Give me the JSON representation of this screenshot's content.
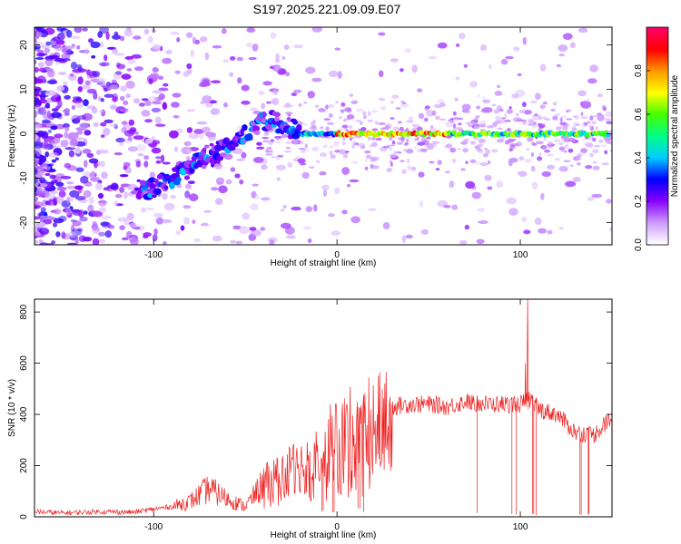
{
  "figure_title": "S197.2025.221.09.09.E07",
  "chart_data": [
    {
      "type": "heatmap",
      "title": "",
      "xlabel": "Height of straight line (km)",
      "ylabel": "Frequency (Hz)",
      "xlim": [
        -165,
        150
      ],
      "ylim": [
        -25,
        24
      ],
      "xticks": [
        -100,
        0,
        100
      ],
      "yticks": [
        -20,
        -10,
        0,
        10,
        20
      ],
      "colorbar": {
        "label": "Normalized spectral amplitude",
        "range": [
          0,
          1
        ],
        "ticks": [
          0.0,
          0.2,
          0.4,
          0.6,
          0.8
        ],
        "tick_labels": [
          "0.0",
          "0.2",
          "0.4",
          "0.6",
          "0.8"
        ],
        "colormap": [
          "#ffffff",
          "#cc99ff",
          "#8800ff",
          "#0000ff",
          "#00ccff",
          "#00ff88",
          "#44ff00",
          "#ffff00",
          "#ff9900",
          "#ff0000",
          "#ff0066"
        ]
      },
      "ridge": {
        "description_points_x": [
          -105,
          -90,
          -75,
          -60,
          -50,
          -40,
          -30,
          -20,
          0,
          50,
          100,
          150
        ],
        "description_points_y": [
          -13,
          -10,
          -6,
          -3,
          0,
          3,
          2,
          0,
          0,
          0,
          0,
          0
        ]
      }
    },
    {
      "type": "line",
      "title": "",
      "xlabel": "Height of straight line (km)",
      "ylabel": "SNR (10 * v/v)",
      "xlim": [
        -165,
        150
      ],
      "ylim": [
        0,
        850
      ],
      "xticks": [
        -100,
        0,
        100
      ],
      "yticks": [
        0,
        200,
        400,
        600,
        800
      ],
      "color": "#ee2222",
      "series": [
        {
          "name": "SNR",
          "x": [
            -165,
            -150,
            -130,
            -110,
            -100,
            -90,
            -80,
            -70,
            -60,
            -50,
            -40,
            -30,
            -20,
            -10,
            0,
            10,
            20,
            30,
            40,
            50,
            60,
            70,
            80,
            90,
            100,
            105,
            110,
            120,
            130,
            140,
            150
          ],
          "values": [
            20,
            15,
            20,
            18,
            30,
            40,
            60,
            110,
            70,
            40,
            130,
            170,
            200,
            260,
            300,
            340,
            370,
            430,
            440,
            440,
            430,
            450,
            440,
            440,
            440,
            460,
            420,
            400,
            330,
            320,
            390
          ]
        }
      ],
      "peak": {
        "x": 104,
        "y": 850
      }
    }
  ]
}
